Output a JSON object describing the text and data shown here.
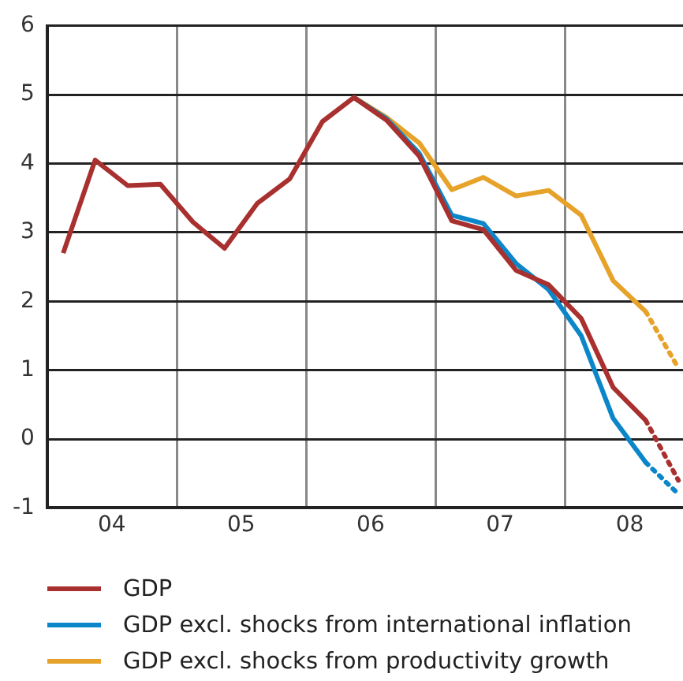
{
  "chart_data": {
    "type": "line",
    "x": [
      "2004-02-15",
      "2004-05-15",
      "2004-08-15",
      "2004-11-15",
      "2005-02-15",
      "2005-05-15",
      "2005-08-15",
      "2005-11-15",
      "2006-02-15",
      "2006-05-15",
      "2006-08-15",
      "2006-11-15",
      "2007-02-15",
      "2007-05-15",
      "2007-08-15",
      "2007-11-15",
      "2008-02-15",
      "2008-05-15",
      "2008-08-15",
      "2008-11-15"
    ],
    "series": [
      {
        "name": "GDP",
        "color": "#a8302f",
        "line_style": "solid",
        "values": [
          2.7,
          4.05,
          3.68,
          3.7,
          3.15,
          2.77,
          3.42,
          3.78,
          4.61,
          4.96,
          4.63,
          4.11,
          3.17,
          3.04,
          2.45,
          2.24,
          1.75,
          0.75,
          0.27,
          null
        ]
      },
      {
        "name": "GDP excl. shocks from international inflation",
        "color": "#0b86c9",
        "line_style": "solid",
        "values": [
          null,
          null,
          null,
          null,
          null,
          null,
          null,
          null,
          null,
          4.96,
          4.65,
          4.15,
          3.25,
          3.13,
          2.55,
          2.17,
          1.5,
          0.3,
          -0.34,
          null
        ]
      },
      {
        "name": "GDP excl. shocks from productivity growth",
        "color": "#e6a229",
        "line_style": "solid",
        "values": [
          null,
          null,
          null,
          null,
          null,
          null,
          null,
          null,
          null,
          4.96,
          4.67,
          4.3,
          3.62,
          3.8,
          3.53,
          3.61,
          3.25,
          2.3,
          1.85,
          null
        ]
      },
      {
        "color": "#a8302f",
        "line_style": "dotted",
        "values": [
          null,
          null,
          null,
          null,
          null,
          null,
          null,
          null,
          null,
          null,
          null,
          null,
          null,
          null,
          null,
          null,
          null,
          null,
          0.27,
          -0.6
        ]
      },
      {
        "color": "#0b86c9",
        "line_style": "dotted",
        "values": [
          null,
          null,
          null,
          null,
          null,
          null,
          null,
          null,
          null,
          null,
          null,
          null,
          null,
          null,
          null,
          null,
          null,
          null,
          -0.34,
          -0.8
        ]
      },
      {
        "color": "#e6a229",
        "line_style": "dotted",
        "values": [
          null,
          null,
          null,
          null,
          null,
          null,
          null,
          null,
          null,
          null,
          null,
          null,
          null,
          null,
          null,
          null,
          null,
          null,
          1.85,
          1.03
        ]
      }
    ],
    "xlim": [
      "2004-01-01",
      "2008-11-28"
    ],
    "xticks": [
      {
        "value": "2004-01-01",
        "label": null
      },
      {
        "value": "2004-07-01",
        "label": "04"
      },
      {
        "value": "2005-01-01",
        "label": null
      },
      {
        "value": "2005-07-01",
        "label": "05"
      },
      {
        "value": "2006-01-01",
        "label": null
      },
      {
        "value": "2006-07-01",
        "label": "06"
      },
      {
        "value": "2007-01-01",
        "label": null
      },
      {
        "value": "2007-07-01",
        "label": "07"
      },
      {
        "value": "2008-01-01",
        "label": null
      },
      {
        "value": "2008-07-01",
        "label": "08"
      }
    ],
    "ylim": [
      -1,
      6
    ],
    "yticks": [
      -1,
      0,
      1,
      2,
      3,
      4,
      5,
      6
    ],
    "grid": true,
    "legend": "bottom",
    "marker": "none"
  }
}
